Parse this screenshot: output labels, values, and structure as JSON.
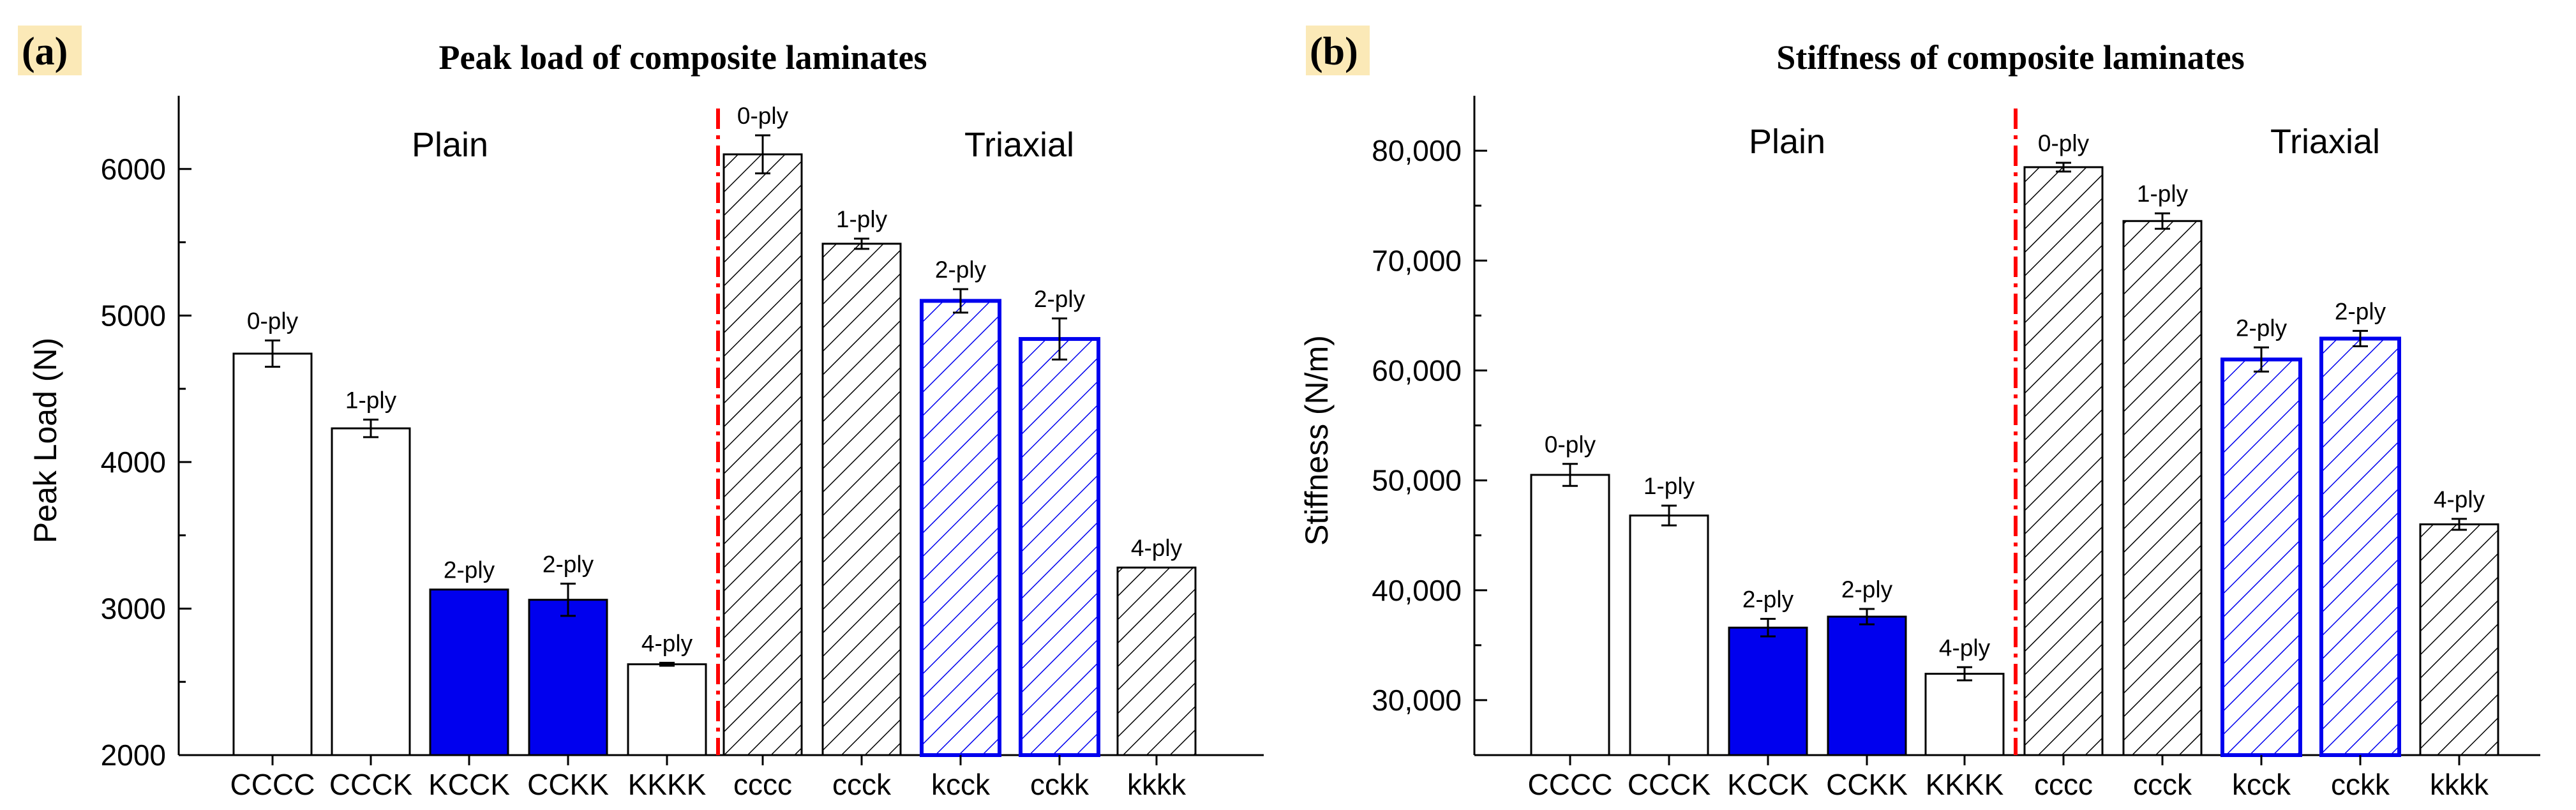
{
  "colors": {
    "blue": "#0000ee",
    "light_blue": "#c8c8ff",
    "separator": "#ff0000",
    "panel_tag_bg": "#fbe9b7",
    "axis": "#000000"
  },
  "chart_data": [
    {
      "panel": "(a)",
      "type": "bar",
      "title": "Peak load of composite laminates",
      "xlabel": "",
      "ylabel": "Peak Load (N)",
      "ylim": [
        2000,
        6500
      ],
      "yticks": [
        2000,
        3000,
        4000,
        5000,
        6000
      ],
      "ytick_labels": [
        "2000",
        "3000",
        "4000",
        "5000",
        "6000"
      ],
      "group_labels": [
        "Plain",
        "Triaxial"
      ],
      "categories": [
        "CCCC",
        "CCCK",
        "KCCK",
        "CCKK",
        "KKKK",
        "cccc",
        "ccck",
        "kcck",
        "cckk",
        "kkkk"
      ],
      "values": [
        4740,
        4230,
        3130,
        3060,
        2620,
        6100,
        5490,
        5100,
        4840,
        3280
      ],
      "errors": [
        90,
        60,
        0,
        110,
        10,
        130,
        35,
        80,
        140,
        0
      ],
      "bar_labels": [
        "0-ply",
        "1-ply",
        "2-ply",
        "2-ply",
        "4-ply",
        "0-ply",
        "1-ply",
        "2-ply",
        "2-ply",
        "4-ply"
      ],
      "styles": [
        "white",
        "white",
        "blue",
        "blue",
        "white",
        "hatch-black",
        "hatch-black",
        "hatch-blue",
        "hatch-blue",
        "hatch-black"
      ]
    },
    {
      "panel": "(b)",
      "type": "bar",
      "title": "Stiffness of composite laminates",
      "xlabel": "",
      "ylabel": "Stiffness (N/m)",
      "ylim": [
        25000,
        85000
      ],
      "yticks": [
        30000,
        40000,
        50000,
        60000,
        70000,
        80000
      ],
      "ytick_labels": [
        "30,000",
        "40,000",
        "50,000",
        "60,000",
        "70,000",
        "80,000"
      ],
      "group_labels": [
        "Plain",
        "Triaxial"
      ],
      "categories": [
        "CCCC",
        "CCCK",
        "KCCK",
        "CCKK",
        "KKKK",
        "cccc",
        "ccck",
        "kcck",
        "cckk",
        "kkkk"
      ],
      "values": [
        50500,
        46800,
        36600,
        37600,
        32400,
        78500,
        73600,
        61000,
        62900,
        46000
      ],
      "errors": [
        1000,
        900,
        800,
        700,
        600,
        400,
        700,
        1100,
        700,
        500
      ],
      "bar_labels": [
        "0-ply",
        "1-ply",
        "2-ply",
        "2-ply",
        "4-ply",
        "0-ply",
        "1-ply",
        "2-ply",
        "2-ply",
        "4-ply"
      ],
      "styles": [
        "white",
        "white",
        "blue",
        "blue",
        "white",
        "hatch-black",
        "hatch-black",
        "hatch-blue",
        "hatch-blue",
        "hatch-black"
      ]
    }
  ]
}
